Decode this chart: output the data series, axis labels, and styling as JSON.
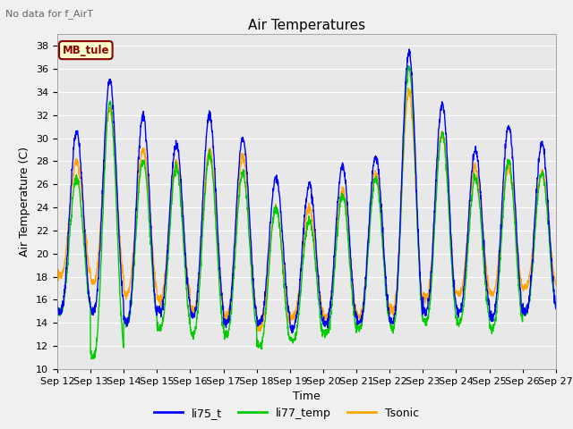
{
  "title": "Air Temperatures",
  "suptitle": "No data for f_AirT",
  "ylabel": "Air Temperature (C)",
  "xlabel": "Time",
  "ylim": [
    10,
    39
  ],
  "yticks": [
    10,
    12,
    14,
    16,
    18,
    20,
    22,
    24,
    26,
    28,
    30,
    32,
    34,
    36,
    38
  ],
  "annotation": "MB_tule",
  "colors": {
    "li75_t": "#0000ff",
    "li77_temp": "#00cc00",
    "Tsonic": "#ffa500"
  },
  "legend_labels": [
    "li75_t",
    "li77_temp",
    "Tsonic"
  ],
  "xtick_labels": [
    "Sep 12",
    "Sep 13",
    "Sep 14",
    "Sep 15",
    "Sep 16",
    "Sep 17",
    "Sep 18",
    "Sep 19",
    "Sep 20",
    "Sep 21",
    "Sep 22",
    "Sep 23",
    "Sep 24",
    "Sep 25",
    "Sep 26",
    "Sep 27"
  ],
  "num_days": 15,
  "background_color": "#e8e8e8",
  "grid_color": "#ffffff",
  "fig_bg": "#f0f0f0",
  "title_fontsize": 11,
  "axis_fontsize": 9,
  "tick_fontsize": 8
}
